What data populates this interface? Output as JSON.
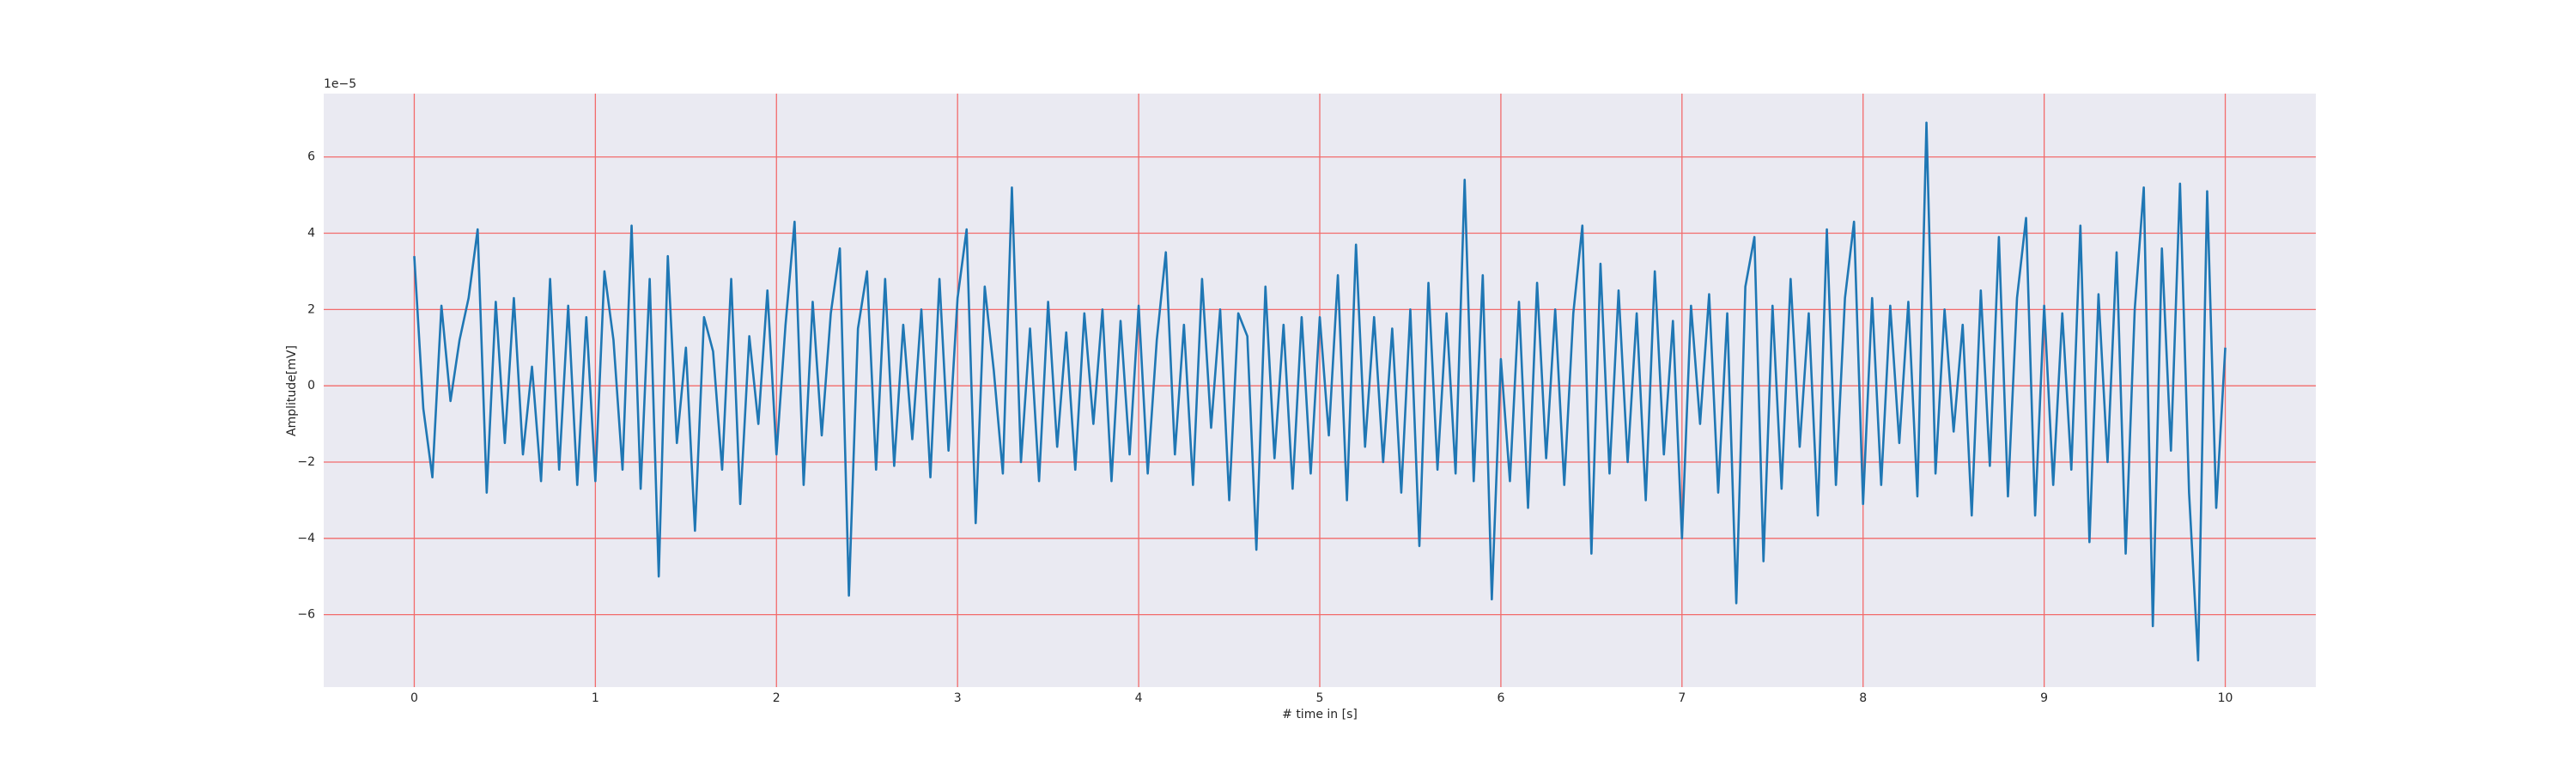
{
  "chart_data": {
    "type": "line",
    "x_label": "# time in [s]",
    "y_label": "Amplitude[mV]",
    "y_offset_label": "1e−5",
    "x": [
      0,
      0.05,
      0.1,
      0.15,
      0.2,
      0.25,
      0.3,
      0.35,
      0.4,
      0.45,
      0.5,
      0.55,
      0.6,
      0.65,
      0.7,
      0.75,
      0.8,
      0.85,
      0.9,
      0.95,
      1,
      1.05,
      1.1,
      1.15,
      1.2,
      1.25,
      1.3,
      1.35,
      1.4,
      1.45,
      1.5,
      1.55,
      1.6,
      1.65,
      1.7,
      1.75,
      1.8,
      1.85,
      1.9,
      1.95,
      2,
      2.05,
      2.1,
      2.15,
      2.2,
      2.25,
      2.3,
      2.35,
      2.4,
      2.45,
      2.5,
      2.55,
      2.6,
      2.65,
      2.7,
      2.75,
      2.8,
      2.85,
      2.9,
      2.95,
      3,
      3.05,
      3.1,
      3.15,
      3.2,
      3.25,
      3.3,
      3.35,
      3.4,
      3.45,
      3.5,
      3.55,
      3.6,
      3.65,
      3.7,
      3.75,
      3.8,
      3.85,
      3.9,
      3.95,
      4,
      4.05,
      4.1,
      4.15,
      4.2,
      4.25,
      4.3,
      4.35,
      4.4,
      4.45,
      4.5,
      4.55,
      4.6,
      4.65,
      4.7,
      4.75,
      4.8,
      4.85,
      4.9,
      4.95,
      5,
      5.05,
      5.1,
      5.15,
      5.2,
      5.25,
      5.3,
      5.35,
      5.4,
      5.45,
      5.5,
      5.55,
      5.6,
      5.65,
      5.7,
      5.75,
      5.8,
      5.85,
      5.9,
      5.95,
      6,
      6.05,
      6.1,
      6.15,
      6.2,
      6.25,
      6.3,
      6.35,
      6.4,
      6.45,
      6.5,
      6.55,
      6.6,
      6.65,
      6.7,
      6.75,
      6.8,
      6.85,
      6.9,
      6.95,
      7,
      7.05,
      7.1,
      7.15,
      7.2,
      7.25,
      7.3,
      7.35,
      7.4,
      7.45,
      7.5,
      7.55,
      7.6,
      7.65,
      7.7,
      7.75,
      7.8,
      7.85,
      7.9,
      7.95,
      8,
      8.05,
      8.1,
      8.15,
      8.2,
      8.25,
      8.3,
      8.35,
      8.4,
      8.45,
      8.5,
      8.55,
      8.6,
      8.65,
      8.7,
      8.75,
      8.8,
      8.85,
      8.9,
      8.95,
      9,
      9.05,
      9.1,
      9.15,
      9.2,
      9.25,
      9.3,
      9.35,
      9.4,
      9.45,
      9.5,
      9.55,
      9.6,
      9.65,
      9.7,
      9.75,
      9.8,
      9.85,
      9.9,
      9.95,
      10
    ],
    "values": [
      3.4,
      -0.6,
      -2.4,
      2.1,
      -0.4,
      1.2,
      2.3,
      4.1,
      -2.8,
      2.2,
      -1.5,
      2.3,
      -1.8,
      0.5,
      -2.5,
      2.8,
      -2.2,
      2.1,
      -2.6,
      1.8,
      -2.5,
      3.0,
      1.2,
      -2.2,
      4.2,
      -2.7,
      2.8,
      -5.0,
      3.4,
      -1.5,
      1.0,
      -3.8,
      1.8,
      0.9,
      -2.2,
      2.8,
      -3.1,
      1.3,
      -1.0,
      2.5,
      -1.8,
      1.6,
      4.3,
      -2.6,
      2.2,
      -1.3,
      1.9,
      3.6,
      -5.5,
      1.5,
      3.0,
      -2.2,
      2.8,
      -2.1,
      1.6,
      -1.4,
      2.0,
      -2.4,
      2.8,
      -1.7,
      2.3,
      4.1,
      -3.6,
      2.6,
      0.4,
      -2.3,
      5.2,
      -2.0,
      1.5,
      -2.5,
      2.2,
      -1.6,
      1.4,
      -2.2,
      1.9,
      -1.0,
      2.0,
      -2.5,
      1.7,
      -1.8,
      2.1,
      -2.3,
      1.2,
      3.5,
      -1.8,
      1.6,
      -2.6,
      2.8,
      -1.1,
      2.0,
      -3.0,
      1.9,
      1.3,
      -4.3,
      2.6,
      -1.9,
      1.6,
      -2.7,
      1.8,
      -2.3,
      1.8,
      -1.3,
      2.9,
      -3.0,
      3.7,
      -1.6,
      1.8,
      -2.0,
      1.5,
      -2.8,
      2.0,
      -4.2,
      2.7,
      -2.2,
      1.9,
      -2.3,
      5.4,
      -2.5,
      2.9,
      -5.6,
      0.7,
      -2.5,
      2.2,
      -3.2,
      2.7,
      -1.9,
      2.0,
      -2.6,
      1.9,
      4.2,
      -4.4,
      3.2,
      -2.3,
      2.5,
      -2.0,
      1.9,
      -3.0,
      3.0,
      -1.8,
      1.7,
      -4.0,
      2.1,
      -1.0,
      2.4,
      -2.8,
      1.9,
      -5.7,
      2.6,
      3.9,
      -4.6,
      2.1,
      -2.7,
      2.8,
      -1.6,
      1.9,
      -3.4,
      4.1,
      -2.6,
      2.3,
      4.3,
      -3.1,
      2.3,
      -2.6,
      2.1,
      -1.5,
      2.2,
      -2.9,
      6.9,
      -2.3,
      2.0,
      -1.2,
      1.6,
      -3.4,
      2.5,
      -2.1,
      3.9,
      -2.9,
      2.3,
      4.4,
      -3.4,
      2.1,
      -2.6,
      1.9,
      -2.2,
      4.2,
      -4.1,
      2.4,
      -2.0,
      3.5,
      -4.4,
      2.0,
      5.2,
      -6.3,
      3.6,
      -1.7,
      5.3,
      -2.8,
      -7.2,
      5.1,
      -3.2,
      1.0
    ],
    "color": "#1f77b4",
    "xlim": [
      -0.5,
      10.5
    ],
    "xticks": [
      0,
      1,
      2,
      3,
      4,
      5,
      6,
      7,
      8,
      9,
      10
    ],
    "ylim": [
      -7.9,
      7.66
    ],
    "yticks": [
      {
        "value": -6,
        "label": "−6"
      },
      {
        "value": -4,
        "label": "−4"
      },
      {
        "value": -2,
        "label": "−2"
      },
      0,
      2,
      4,
      6
    ],
    "grid": true,
    "grid_color": "#f26b6b",
    "background": "#eaeaf2"
  }
}
